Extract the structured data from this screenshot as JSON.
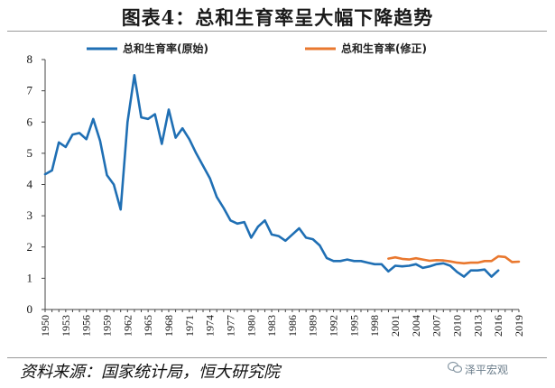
{
  "title": "图表4：总和生育率呈大幅下降趋势",
  "source": "资料来源：国家统计局，恒大研究院",
  "watermark": "泽平宏观",
  "colors": {
    "original": "#1f6fb4",
    "revised": "#e9782f"
  },
  "chart_data": {
    "type": "line",
    "ylim": [
      0,
      8
    ],
    "yticks": [
      0,
      1,
      2,
      3,
      4,
      5,
      6,
      7,
      8
    ],
    "xlim": [
      1950,
      2019
    ],
    "xticks": [
      "1950",
      "1953",
      "1956",
      "1959",
      "1962",
      "1965",
      "1968",
      "1971",
      "1974",
      "1977",
      "1980",
      "1983",
      "1986",
      "1989",
      "1992",
      "1995",
      "1998",
      "2001",
      "2004",
      "2007",
      "2010",
      "2013",
      "2016",
      "2019"
    ],
    "legend": [
      "总和生育率(原始)",
      "总和生育率(修正)"
    ],
    "series": [
      {
        "name": "总和生育率(原始)",
        "x": [
          1950,
          1951,
          1952,
          1953,
          1954,
          1955,
          1956,
          1957,
          1958,
          1959,
          1960,
          1961,
          1962,
          1963,
          1964,
          1965,
          1966,
          1967,
          1968,
          1969,
          1970,
          1971,
          1972,
          1973,
          1974,
          1975,
          1976,
          1977,
          1978,
          1979,
          1980,
          1981,
          1982,
          1983,
          1984,
          1985,
          1986,
          1987,
          1988,
          1989,
          1990,
          1991,
          1992,
          1993,
          1994,
          1995,
          1996,
          1997,
          1998,
          1999,
          2000,
          2001,
          2002,
          2003,
          2004,
          2005,
          2006,
          2007,
          2008,
          2009,
          2010,
          2011,
          2012,
          2013,
          2014,
          2015,
          2016
        ],
        "values": [
          4.33,
          4.45,
          5.35,
          5.2,
          5.6,
          5.65,
          5.45,
          6.1,
          5.4,
          4.3,
          4.0,
          3.2,
          6.0,
          7.5,
          6.15,
          6.1,
          6.25,
          5.3,
          6.4,
          5.5,
          5.8,
          5.45,
          5.0,
          4.6,
          4.2,
          3.6,
          3.25,
          2.85,
          2.75,
          2.8,
          2.3,
          2.65,
          2.85,
          2.4,
          2.35,
          2.2,
          2.4,
          2.6,
          2.3,
          2.25,
          2.05,
          1.65,
          1.55,
          1.55,
          1.6,
          1.55,
          1.55,
          1.5,
          1.45,
          1.45,
          1.22,
          1.4,
          1.38,
          1.4,
          1.45,
          1.33,
          1.38,
          1.45,
          1.48,
          1.4,
          1.2,
          1.05,
          1.25,
          1.25,
          1.28,
          1.05,
          1.25
        ]
      },
      {
        "name": "总和生育率(修正)",
        "x": [
          2000,
          2001,
          2002,
          2003,
          2004,
          2005,
          2006,
          2007,
          2008,
          2009,
          2010,
          2011,
          2012,
          2013,
          2014,
          2015,
          2016,
          2017,
          2018,
          2019
        ],
        "values": [
          1.63,
          1.67,
          1.62,
          1.6,
          1.64,
          1.6,
          1.56,
          1.58,
          1.57,
          1.54,
          1.5,
          1.48,
          1.5,
          1.5,
          1.55,
          1.55,
          1.7,
          1.68,
          1.52,
          1.53
        ]
      }
    ]
  }
}
